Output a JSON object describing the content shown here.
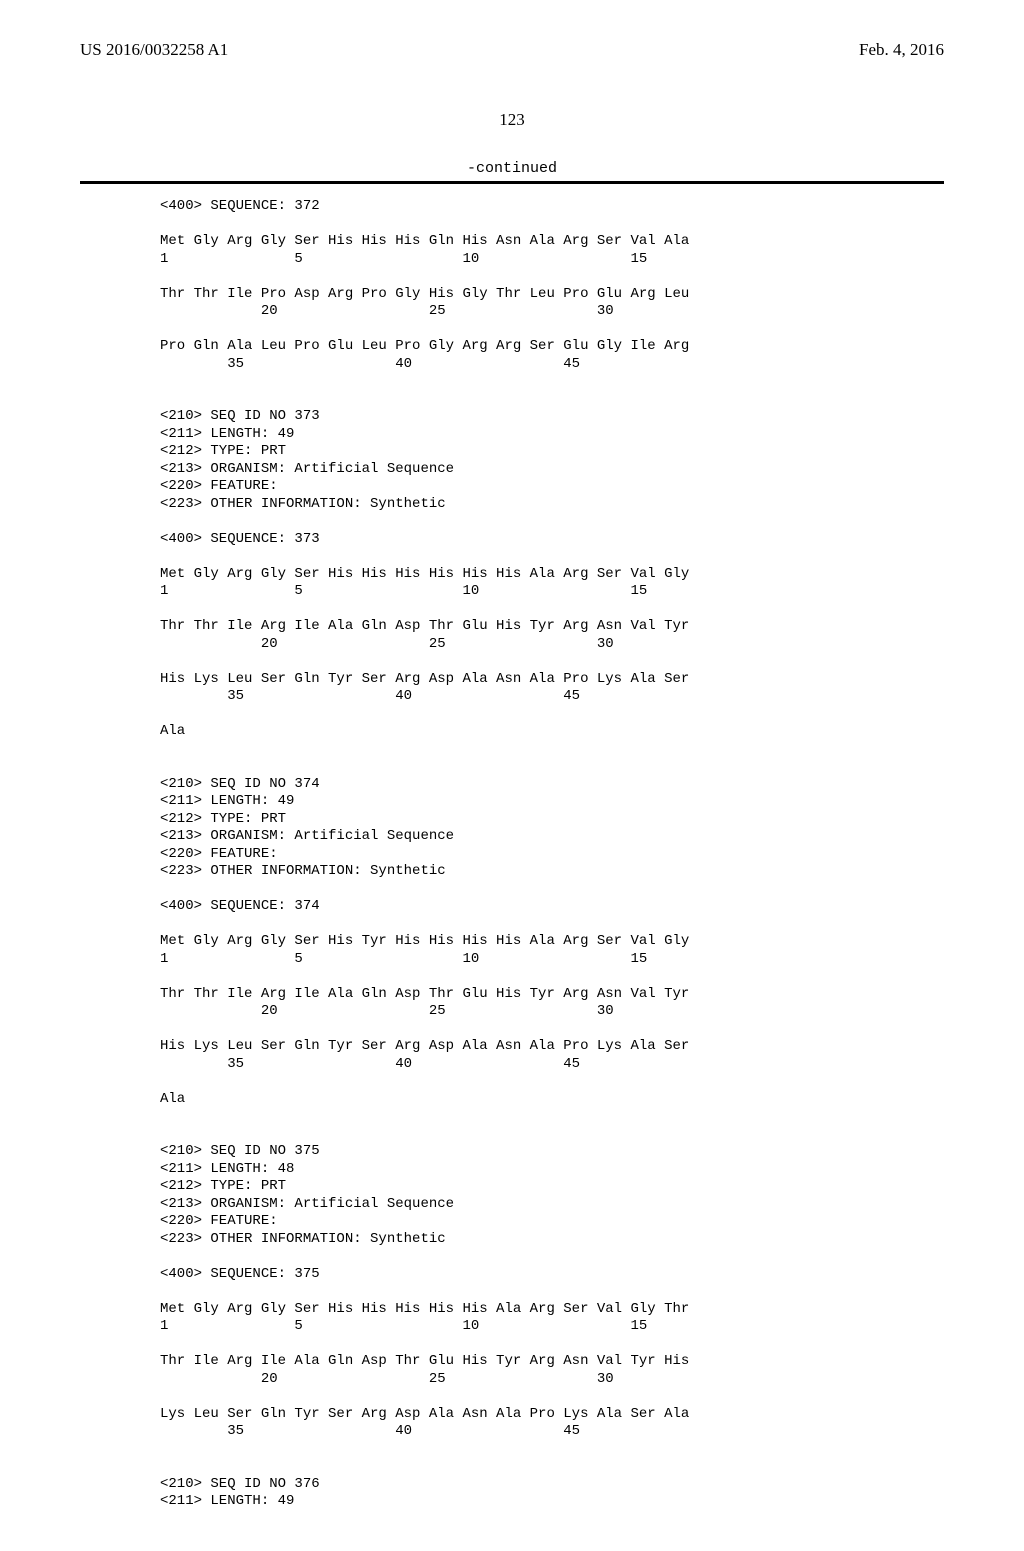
{
  "header": {
    "pubnum": "US 2016/0032258 A1",
    "date": "Feb. 4, 2016"
  },
  "page_number": "123",
  "continued_label": "-continued",
  "entries": [
    {
      "text": "<400> SEQUENCE: 372"
    },
    {
      "text": ""
    },
    {
      "text": "Met Gly Arg Gly Ser His His His Gln His Asn Ala Arg Ser Val Ala"
    },
    {
      "text": "1               5                   10                  15"
    },
    {
      "text": ""
    },
    {
      "text": "Thr Thr Ile Pro Asp Arg Pro Gly His Gly Thr Leu Pro Glu Arg Leu"
    },
    {
      "text": "            20                  25                  30"
    },
    {
      "text": ""
    },
    {
      "text": "Pro Gln Ala Leu Pro Glu Leu Pro Gly Arg Arg Ser Glu Gly Ile Arg"
    },
    {
      "text": "        35                  40                  45"
    },
    {
      "text": ""
    },
    {
      "text": ""
    },
    {
      "text": "<210> SEQ ID NO 373"
    },
    {
      "text": "<211> LENGTH: 49"
    },
    {
      "text": "<212> TYPE: PRT"
    },
    {
      "text": "<213> ORGANISM: Artificial Sequence"
    },
    {
      "text": "<220> FEATURE:"
    },
    {
      "text": "<223> OTHER INFORMATION: Synthetic"
    },
    {
      "text": ""
    },
    {
      "text": "<400> SEQUENCE: 373"
    },
    {
      "text": ""
    },
    {
      "text": "Met Gly Arg Gly Ser His His His His His His Ala Arg Ser Val Gly"
    },
    {
      "text": "1               5                   10                  15"
    },
    {
      "text": ""
    },
    {
      "text": "Thr Thr Ile Arg Ile Ala Gln Asp Thr Glu His Tyr Arg Asn Val Tyr"
    },
    {
      "text": "            20                  25                  30"
    },
    {
      "text": ""
    },
    {
      "text": "His Lys Leu Ser Gln Tyr Ser Arg Asp Ala Asn Ala Pro Lys Ala Ser"
    },
    {
      "text": "        35                  40                  45"
    },
    {
      "text": ""
    },
    {
      "text": "Ala"
    },
    {
      "text": ""
    },
    {
      "text": ""
    },
    {
      "text": "<210> SEQ ID NO 374"
    },
    {
      "text": "<211> LENGTH: 49"
    },
    {
      "text": "<212> TYPE: PRT"
    },
    {
      "text": "<213> ORGANISM: Artificial Sequence"
    },
    {
      "text": "<220> FEATURE:"
    },
    {
      "text": "<223> OTHER INFORMATION: Synthetic"
    },
    {
      "text": ""
    },
    {
      "text": "<400> SEQUENCE: 374"
    },
    {
      "text": ""
    },
    {
      "text": "Met Gly Arg Gly Ser His Tyr His His His His Ala Arg Ser Val Gly"
    },
    {
      "text": "1               5                   10                  15"
    },
    {
      "text": ""
    },
    {
      "text": "Thr Thr Ile Arg Ile Ala Gln Asp Thr Glu His Tyr Arg Asn Val Tyr"
    },
    {
      "text": "            20                  25                  30"
    },
    {
      "text": ""
    },
    {
      "text": "His Lys Leu Ser Gln Tyr Ser Arg Asp Ala Asn Ala Pro Lys Ala Ser"
    },
    {
      "text": "        35                  40                  45"
    },
    {
      "text": ""
    },
    {
      "text": "Ala"
    },
    {
      "text": ""
    },
    {
      "text": ""
    },
    {
      "text": "<210> SEQ ID NO 375"
    },
    {
      "text": "<211> LENGTH: 48"
    },
    {
      "text": "<212> TYPE: PRT"
    },
    {
      "text": "<213> ORGANISM: Artificial Sequence"
    },
    {
      "text": "<220> FEATURE:"
    },
    {
      "text": "<223> OTHER INFORMATION: Synthetic"
    },
    {
      "text": ""
    },
    {
      "text": "<400> SEQUENCE: 375"
    },
    {
      "text": ""
    },
    {
      "text": "Met Gly Arg Gly Ser His His His His His Ala Arg Ser Val Gly Thr"
    },
    {
      "text": "1               5                   10                  15"
    },
    {
      "text": ""
    },
    {
      "text": "Thr Ile Arg Ile Ala Gln Asp Thr Glu His Tyr Arg Asn Val Tyr His"
    },
    {
      "text": "            20                  25                  30"
    },
    {
      "text": ""
    },
    {
      "text": "Lys Leu Ser Gln Tyr Ser Arg Asp Ala Asn Ala Pro Lys Ala Ser Ala"
    },
    {
      "text": "        35                  40                  45"
    },
    {
      "text": ""
    },
    {
      "text": ""
    },
    {
      "text": "<210> SEQ ID NO 376"
    },
    {
      "text": "<211> LENGTH: 49"
    }
  ]
}
